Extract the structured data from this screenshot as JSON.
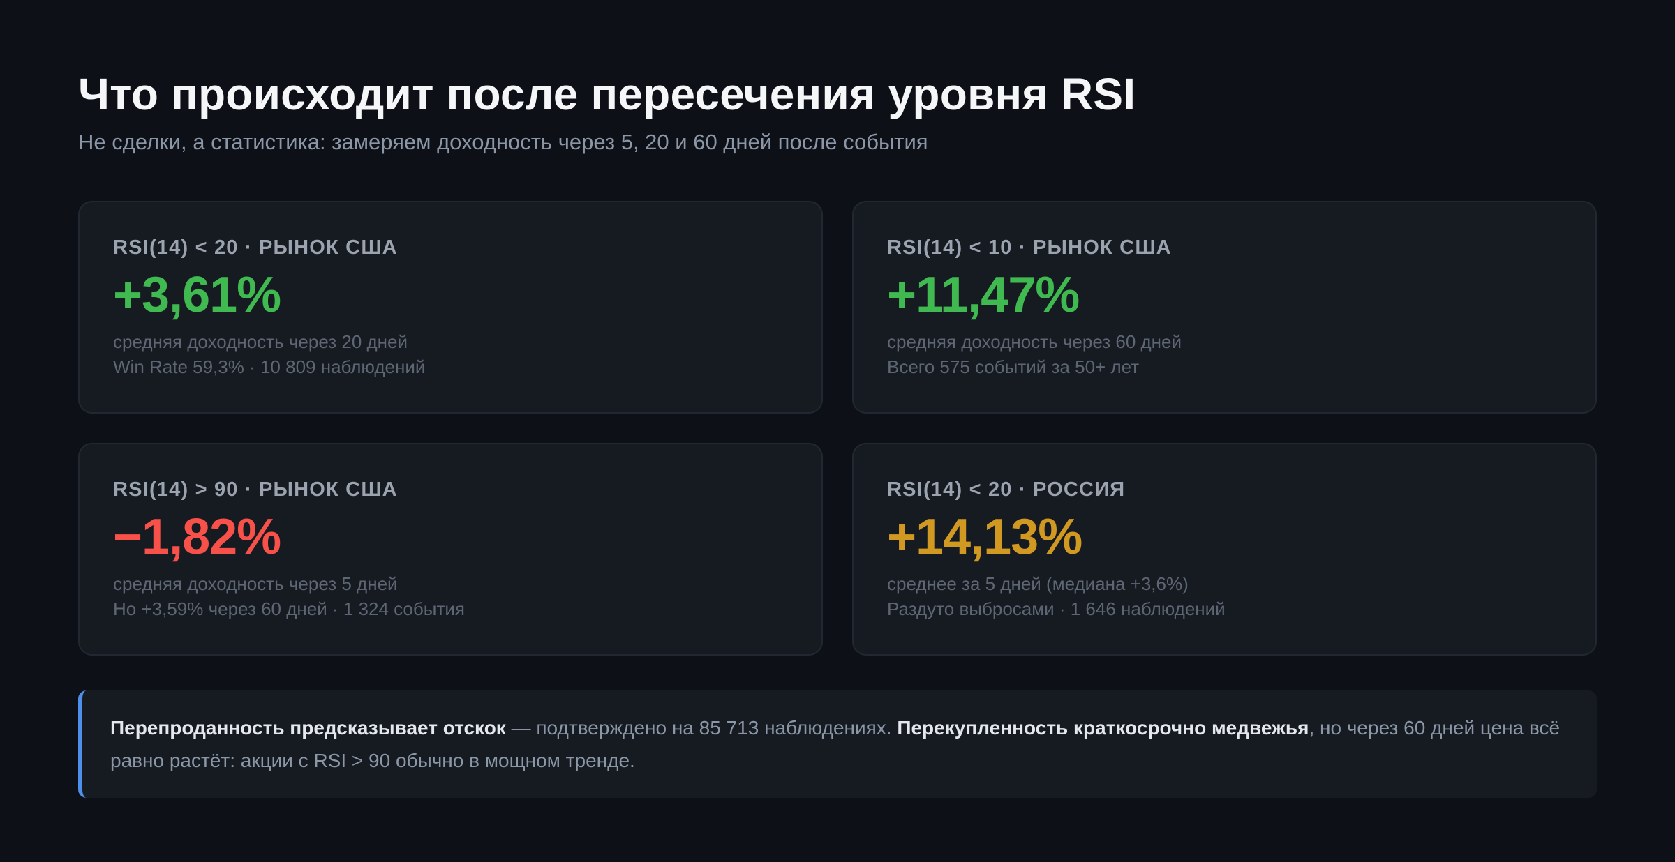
{
  "header": {
    "title": "Что происходит после пересечения уровня RSI",
    "subtitle": "Не сделки, а статистика: замеряем доходность через 5, 20 и 60 дней после события"
  },
  "cards": [
    {
      "label": "RSI(14) < 20 · РЫНОК США",
      "value": "+3,61%",
      "value_color": "#3fb950",
      "description": "средняя доходность через 20 дней",
      "note": "Win Rate 59,3% · 10 809 наблюдений"
    },
    {
      "label": "RSI(14) < 10 · РЫНОК США",
      "value": "+11,47%",
      "value_color": "#3fb950",
      "description": "средняя доходность через 60 дней",
      "note": "Всего 575 событий за 50+ лет"
    },
    {
      "label": "RSI(14) > 90 · РЫНОК США",
      "value": "−1,82%",
      "value_color": "#f85149",
      "description": "средняя доходность через 5 дней",
      "note": "Но +3,59% через 60 дней · 1 324 события"
    },
    {
      "label": "RSI(14) < 20 · РОССИЯ",
      "value": "+14,13%",
      "value_color": "#d29922",
      "description": "среднее за 5 дней (медиана +3,6%)",
      "note": "Раздуто выбросами · 1 646 наблюдений"
    }
  ],
  "callout": {
    "accent_color": "#4e8fea",
    "bold_1": "Перепроданность предсказывает отскок",
    "text_1": " — подтверждено на 85 713 наблюдениях. ",
    "bold_2": "Перекупленность краткосрочно медвежья",
    "text_2": ", но через 60 дней цена всё равно растёт: акции с RSI > 90 обычно в мощном тренде."
  }
}
